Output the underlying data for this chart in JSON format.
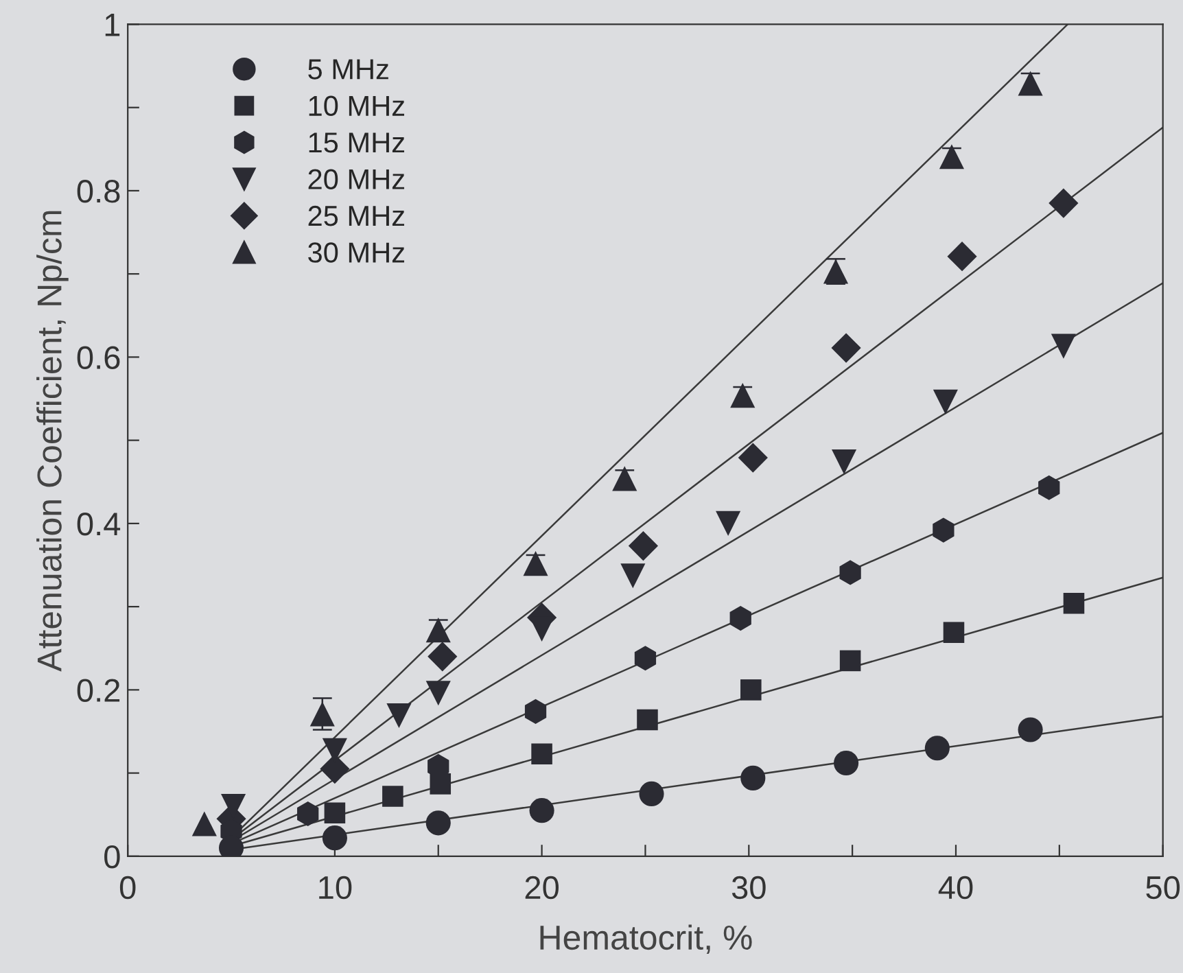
{
  "chart_data": {
    "type": "scatter",
    "xlabel": "Hematocrit, %",
    "ylabel": "Attenuation Coefficient, Np/cm",
    "xlim": [
      0,
      50
    ],
    "ylim": [
      0,
      1
    ],
    "xticks": [
      0,
      {
        "value": 5,
        "label": null
      },
      10,
      {
        "value": 15,
        "label": null
      },
      20,
      {
        "value": 25,
        "label": null
      },
      30,
      {
        "value": 35,
        "label": null
      },
      40,
      {
        "value": 45,
        "label": null
      },
      50
    ],
    "yticks": [
      0,
      {
        "value": 0.1,
        "label": null
      },
      0.2,
      {
        "value": 0.3,
        "label": null
      },
      0.4,
      {
        "value": 0.5,
        "label": null
      },
      0.6,
      {
        "value": 0.7,
        "label": null
      },
      0.8,
      {
        "value": 0.9,
        "label": null
      },
      1
    ],
    "grid": false,
    "legend": "top left",
    "series": [
      {
        "name": "5 MHz",
        "marker": "circle",
        "color": "#2b2b33",
        "x": [
          5,
          10,
          15,
          20,
          25.3,
          30.2,
          34.7,
          39.1,
          43.6
        ],
        "values": [
          0.01,
          0.022,
          0.04,
          0.055,
          0.075,
          0.094,
          0.112,
          0.13,
          0.152
        ]
      },
      {
        "name": "10 MHz",
        "marker": "square",
        "color": "#2b2b33",
        "x": [
          10,
          12.8,
          15.1,
          20,
          25.1,
          30.1,
          34.9,
          39.9,
          45.7
        ],
        "values": [
          0.052,
          0.072,
          0.087,
          0.123,
          0.164,
          0.2,
          0.235,
          0.269,
          0.304
        ]
      },
      {
        "name": "15 MHz",
        "color": "#2b2b33",
        "x": [
          5,
          8.7,
          15,
          19.7,
          25,
          29.6,
          34.9,
          39.4,
          44.5
        ],
        "values": [
          0.03,
          0.051,
          0.108,
          0.174,
          0.238,
          0.286,
          0.341,
          0.392,
          0.443
        ]
      },
      {
        "name": "20 MHz",
        "marker": "triangle_down",
        "color": "#2b2b33",
        "x": [
          5.1,
          10,
          13.1,
          15,
          20,
          24.4,
          29,
          34.6,
          39.5,
          45.2
        ],
        "values": [
          0.06,
          0.127,
          0.169,
          0.196,
          0.273,
          0.337,
          0.4,
          0.474,
          0.546,
          0.613
        ]
      },
      {
        "name": "25 MHz",
        "marker": "diamond",
        "color": "#2b2b33",
        "x": [
          5,
          10,
          15.2,
          20,
          24.9,
          30.2,
          34.7,
          40.3,
          45.2
        ],
        "values": [
          0.045,
          0.105,
          0.24,
          0.287,
          0.373,
          0.479,
          0.611,
          0.721,
          0.785
        ]
      },
      {
        "name": "30 MHz",
        "marker": "triangle",
        "color": "#2b2b33",
        "x": [
          3.7,
          9.4,
          15,
          19.7,
          24,
          29.7,
          34.2,
          39.8,
          43.6
        ],
        "values": [
          0.039,
          0.171,
          0.272,
          0.352,
          0.454,
          0.554,
          0.703,
          0.841,
          0.929
        ],
        "errors": [
          null,
          0.019,
          0.012,
          0.01,
          0.01,
          0.01,
          0.015,
          0.01,
          0.012
        ]
      },
      {
        "type": "line",
        "color": "#3a3a3a",
        "x": [
          5,
          50
        ],
        "values": [
          0.008,
          0.168
        ]
      },
      {
        "type": "line",
        "color": "#3a3a3a",
        "x": [
          5,
          50
        ],
        "values": [
          0.012,
          0.335
        ]
      },
      {
        "type": "line",
        "color": "#3a3a3a",
        "x": [
          5,
          50
        ],
        "values": [
          0.015,
          0.509
        ]
      },
      {
        "type": "line",
        "color": "#3a3a3a",
        "x": [
          5,
          50
        ],
        "values": [
          0.018,
          0.689
        ]
      },
      {
        "type": "line",
        "color": "#3a3a3a",
        "x": [
          5,
          50
        ],
        "values": [
          0.02,
          0.876
        ]
      },
      {
        "type": "line",
        "color": "#3a3a3a",
        "x": [
          5,
          45.4
        ],
        "values": [
          0.022,
          1
        ]
      }
    ]
  }
}
